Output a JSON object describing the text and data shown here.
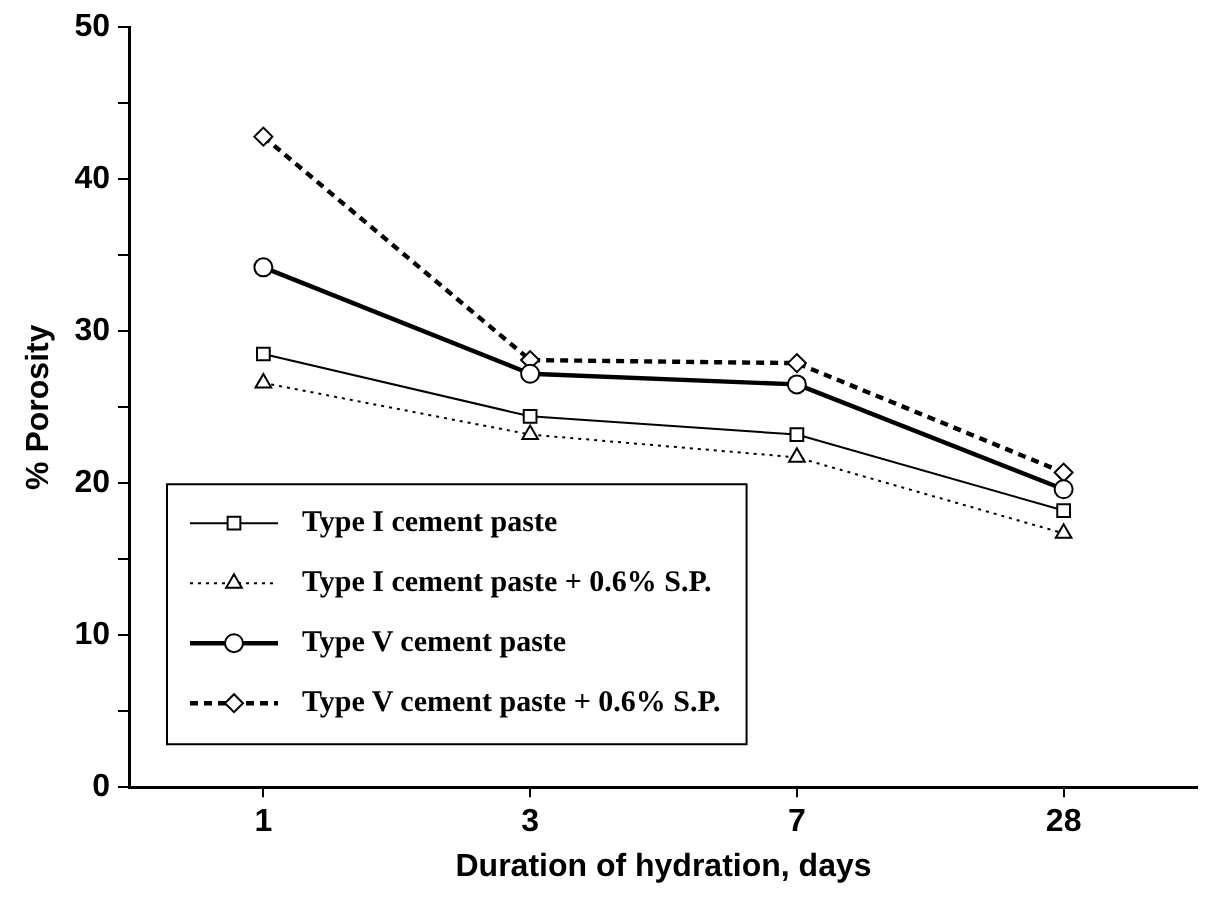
{
  "chart_data": {
    "type": "line",
    "xlabel": "Duration of hydration, days",
    "ylabel": "% Porosity",
    "categories": [
      "1",
      "3",
      "7",
      "28"
    ],
    "ylim": [
      0,
      50
    ],
    "yticks": [
      0,
      {
        "value": 5,
        "label": null
      },
      10,
      {
        "value": 15,
        "label": null
      },
      20,
      {
        "value": 25,
        "label": null
      },
      30,
      {
        "value": 35,
        "label": null
      },
      40,
      {
        "value": 45,
        "label": null
      },
      50
    ],
    "grid": false,
    "legend": "bottom left",
    "series": [
      {
        "name": "Type I cement paste",
        "color": "#000000",
        "marker": "square",
        "line_style": "solid",
        "values": [
          28.5,
          24.4,
          23.2,
          18.2
        ]
      },
      {
        "name": "Type I cement paste + 0.6% S.P.",
        "color": "#000000",
        "marker": "triangle",
        "line_style": "dotted",
        "values": [
          26.6,
          23.2,
          21.7,
          16.7
        ]
      },
      {
        "name": "Type V cement paste",
        "color": "#000000",
        "marker": "circle",
        "line_style": "solid",
        "values": [
          34.2,
          27.2,
          26.5,
          19.6
        ]
      },
      {
        "name": "Type V cement paste + 0.6% S.P.",
        "color": "#000000",
        "marker": "diamond",
        "line_style": "dashed",
        "values": [
          42.8,
          28.1,
          27.9,
          20.7
        ]
      }
    ]
  }
}
